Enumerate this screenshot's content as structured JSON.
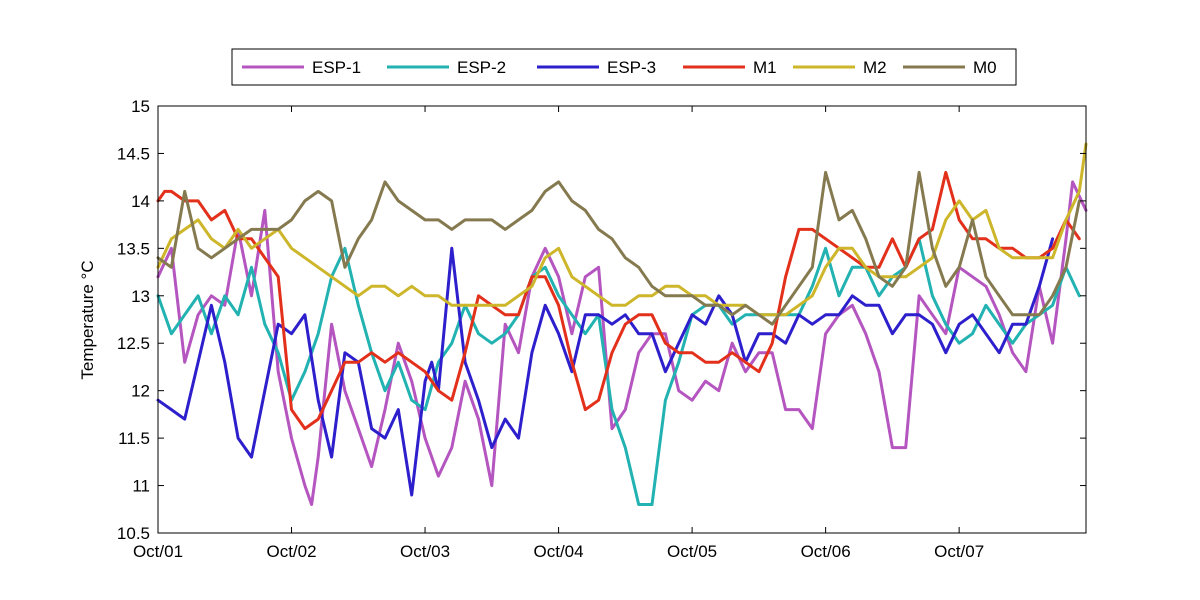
{
  "chart_data": {
    "type": "line",
    "title": "",
    "xlabel": "",
    "ylabel": "Temperature °C",
    "ylim": [
      10.5,
      15
    ],
    "xlim": [
      0,
      6.95
    ],
    "grid": false,
    "legend_position": "top",
    "legend_orientation": "horizontal",
    "x_ticks": [
      {
        "value": 0,
        "label": "Oct/01"
      },
      {
        "value": 1,
        "label": "Oct/02"
      },
      {
        "value": 2,
        "label": "Oct/03"
      },
      {
        "value": 3,
        "label": "Oct/04"
      },
      {
        "value": 4,
        "label": "Oct/05"
      },
      {
        "value": 5,
        "label": "Oct/06"
      },
      {
        "value": 6,
        "label": "Oct/07"
      }
    ],
    "y_ticks": [
      10.5,
      11,
      11.5,
      12,
      12.5,
      13,
      13.5,
      14,
      14.5,
      15
    ],
    "series": [
      {
        "name": "ESP-1",
        "color": "#b455c0",
        "x": [
          0,
          0.1,
          0.2,
          0.3,
          0.4,
          0.5,
          0.6,
          0.7,
          0.8,
          0.9,
          1.0,
          1.1,
          1.15,
          1.2,
          1.3,
          1.4,
          1.5,
          1.6,
          1.7,
          1.8,
          1.9,
          2.0,
          2.1,
          2.2,
          2.3,
          2.4,
          2.5,
          2.6,
          2.7,
          2.8,
          2.9,
          3.0,
          3.1,
          3.2,
          3.3,
          3.4,
          3.5,
          3.6,
          3.7,
          3.8,
          3.9,
          4.0,
          4.1,
          4.2,
          4.3,
          4.4,
          4.5,
          4.6,
          4.7,
          4.8,
          4.9,
          5.0,
          5.1,
          5.2,
          5.3,
          5.4,
          5.5,
          5.6,
          5.7,
          5.8,
          5.9,
          6.0,
          6.1,
          6.2,
          6.3,
          6.4,
          6.5,
          6.6,
          6.7,
          6.8,
          6.85,
          6.95
        ],
        "values": [
          13.2,
          13.5,
          12.3,
          12.8,
          13.0,
          12.9,
          13.7,
          13.0,
          13.9,
          12.2,
          11.5,
          11.0,
          10.8,
          11.3,
          12.7,
          12.0,
          11.6,
          11.2,
          11.8,
          12.5,
          12.1,
          11.5,
          11.1,
          11.4,
          12.1,
          11.7,
          11.0,
          12.7,
          12.4,
          13.2,
          13.5,
          13.2,
          12.6,
          13.2,
          13.3,
          11.6,
          11.8,
          12.4,
          12.6,
          12.6,
          12.0,
          11.9,
          12.1,
          12.0,
          12.5,
          12.2,
          12.4,
          12.4,
          11.8,
          11.8,
          11.6,
          12.6,
          12.8,
          12.9,
          12.6,
          12.2,
          11.4,
          11.4,
          13.0,
          12.8,
          12.6,
          13.3,
          13.2,
          13.1,
          12.8,
          12.4,
          12.2,
          13.1,
          12.5,
          13.6,
          14.2,
          13.9
        ]
      },
      {
        "name": "ESP-2",
        "color": "#22b2b2",
        "x": [
          0,
          0.1,
          0.2,
          0.3,
          0.4,
          0.5,
          0.6,
          0.7,
          0.8,
          0.9,
          1.0,
          1.1,
          1.2,
          1.3,
          1.4,
          1.5,
          1.6,
          1.7,
          1.8,
          1.9,
          2.0,
          2.1,
          2.2,
          2.3,
          2.4,
          2.5,
          2.6,
          2.7,
          2.8,
          2.9,
          3.0,
          3.1,
          3.2,
          3.3,
          3.4,
          3.5,
          3.6,
          3.7,
          3.8,
          3.9,
          4.0,
          4.1,
          4.2,
          4.3,
          4.4,
          4.5,
          4.6,
          4.7,
          4.8,
          4.9,
          5.0,
          5.1,
          5.2,
          5.3,
          5.4,
          5.5,
          5.6,
          5.7,
          5.8,
          5.9,
          6.0,
          6.1,
          6.2,
          6.3,
          6.4,
          6.5,
          6.6,
          6.7,
          6.8,
          6.9
        ],
        "values": [
          13.0,
          12.6,
          12.8,
          13.0,
          12.6,
          13.0,
          12.8,
          13.3,
          12.7,
          12.4,
          11.9,
          12.2,
          12.6,
          13.2,
          13.5,
          12.9,
          12.4,
          12.0,
          12.3,
          11.9,
          11.8,
          12.3,
          12.5,
          12.9,
          12.6,
          12.5,
          12.6,
          12.8,
          13.2,
          13.3,
          13.0,
          12.8,
          12.6,
          12.8,
          11.8,
          11.4,
          10.8,
          10.8,
          11.9,
          12.3,
          12.8,
          12.9,
          12.9,
          12.7,
          12.8,
          12.8,
          12.8,
          12.8,
          12.8,
          13.1,
          13.5,
          13.0,
          13.3,
          13.3,
          13.0,
          13.2,
          13.3,
          13.6,
          13.0,
          12.7,
          12.5,
          12.6,
          12.9,
          12.7,
          12.5,
          12.7,
          12.8,
          12.9,
          13.3,
          13.0
        ]
      },
      {
        "name": "ESP-3",
        "color": "#2d1fcc",
        "x": [
          0,
          0.1,
          0.2,
          0.3,
          0.4,
          0.5,
          0.6,
          0.7,
          0.8,
          0.9,
          1.0,
          1.1,
          1.2,
          1.3,
          1.4,
          1.5,
          1.6,
          1.7,
          1.8,
          1.9,
          2.0,
          2.05,
          2.1,
          2.2,
          2.3,
          2.4,
          2.5,
          2.6,
          2.7,
          2.8,
          2.9,
          3.0,
          3.1,
          3.2,
          3.3,
          3.4,
          3.5,
          3.6,
          3.7,
          3.8,
          3.9,
          4.0,
          4.1,
          4.2,
          4.3,
          4.4,
          4.5,
          4.6,
          4.7,
          4.8,
          4.9,
          5.0,
          5.1,
          5.2,
          5.3,
          5.4,
          5.5,
          5.6,
          5.7,
          5.8,
          5.9,
          6.0,
          6.1,
          6.2,
          6.3,
          6.4,
          6.5,
          6.6,
          6.7
        ],
        "values": [
          11.9,
          11.8,
          11.7,
          12.3,
          12.9,
          12.3,
          11.5,
          11.3,
          12.0,
          12.7,
          12.6,
          12.8,
          11.9,
          11.3,
          12.4,
          12.3,
          11.6,
          11.5,
          11.8,
          10.9,
          12.1,
          12.3,
          12.0,
          13.5,
          12.3,
          11.9,
          11.4,
          11.7,
          11.5,
          12.4,
          12.9,
          12.6,
          12.2,
          12.8,
          12.8,
          12.7,
          12.8,
          12.6,
          12.6,
          12.2,
          12.5,
          12.8,
          12.7,
          13.0,
          12.8,
          12.3,
          12.6,
          12.6,
          12.5,
          12.8,
          12.7,
          12.8,
          12.8,
          13.0,
          12.9,
          12.9,
          12.6,
          12.8,
          12.8,
          12.7,
          12.4,
          12.7,
          12.8,
          12.6,
          12.4,
          12.7,
          12.7,
          13.1,
          13.6
        ]
      },
      {
        "name": "M1",
        "color": "#e2301b",
        "x": [
          0,
          0.05,
          0.1,
          0.2,
          0.3,
          0.4,
          0.5,
          0.6,
          0.7,
          0.8,
          0.9,
          1.0,
          1.1,
          1.2,
          1.3,
          1.4,
          1.5,
          1.6,
          1.7,
          1.8,
          1.9,
          2.0,
          2.1,
          2.2,
          2.3,
          2.4,
          2.5,
          2.6,
          2.7,
          2.8,
          2.9,
          3.0,
          3.1,
          3.2,
          3.3,
          3.4,
          3.5,
          3.6,
          3.7,
          3.8,
          3.9,
          4.0,
          4.1,
          4.2,
          4.3,
          4.4,
          4.5,
          4.6,
          4.7,
          4.8,
          4.9,
          5.0,
          5.1,
          5.2,
          5.3,
          5.4,
          5.5,
          5.6,
          5.7,
          5.8,
          5.9,
          6.0,
          6.1,
          6.2,
          6.3,
          6.4,
          6.5,
          6.6,
          6.7,
          6.8,
          6.9
        ],
        "values": [
          14.0,
          14.1,
          14.1,
          14.0,
          14.0,
          13.8,
          13.9,
          13.6,
          13.6,
          13.4,
          13.2,
          11.8,
          11.6,
          11.7,
          12.0,
          12.3,
          12.3,
          12.4,
          12.3,
          12.4,
          12.3,
          12.2,
          12.0,
          11.9,
          12.4,
          13.0,
          12.9,
          12.8,
          12.8,
          13.2,
          13.2,
          12.9,
          12.3,
          11.8,
          11.9,
          12.4,
          12.7,
          12.8,
          12.8,
          12.5,
          12.4,
          12.4,
          12.3,
          12.3,
          12.4,
          12.3,
          12.2,
          12.5,
          13.2,
          13.7,
          13.7,
          13.6,
          13.5,
          13.4,
          13.3,
          13.3,
          13.6,
          13.3,
          13.6,
          13.7,
          14.3,
          13.8,
          13.6,
          13.6,
          13.5,
          13.5,
          13.4,
          13.4,
          13.5,
          13.8,
          13.6
        ]
      },
      {
        "name": "M2",
        "color": "#cdb62a",
        "x": [
          0,
          0.1,
          0.2,
          0.3,
          0.4,
          0.5,
          0.6,
          0.7,
          0.8,
          0.9,
          1.0,
          1.1,
          1.2,
          1.3,
          1.4,
          1.5,
          1.6,
          1.7,
          1.8,
          1.9,
          2.0,
          2.1,
          2.2,
          2.3,
          2.4,
          2.5,
          2.6,
          2.7,
          2.8,
          2.9,
          3.0,
          3.1,
          3.2,
          3.3,
          3.4,
          3.5,
          3.6,
          3.7,
          3.8,
          3.9,
          4.0,
          4.1,
          4.2,
          4.3,
          4.4,
          4.5,
          4.6,
          4.7,
          4.8,
          4.9,
          5.0,
          5.1,
          5.2,
          5.3,
          5.4,
          5.5,
          5.6,
          5.7,
          5.8,
          5.9,
          6.0,
          6.1,
          6.2,
          6.3,
          6.4,
          6.5,
          6.6,
          6.7,
          6.8,
          6.9,
          6.95
        ],
        "values": [
          13.3,
          13.6,
          13.7,
          13.8,
          13.6,
          13.5,
          13.7,
          13.5,
          13.6,
          13.7,
          13.5,
          13.4,
          13.3,
          13.2,
          13.1,
          13.0,
          13.1,
          13.1,
          13.0,
          13.1,
          13.0,
          13.0,
          12.9,
          12.9,
          12.9,
          12.9,
          12.9,
          13.0,
          13.1,
          13.4,
          13.5,
          13.2,
          13.1,
          13.0,
          12.9,
          12.9,
          13.0,
          13.0,
          13.1,
          13.1,
          13.0,
          13.0,
          12.9,
          12.9,
          12.9,
          12.8,
          12.8,
          12.8,
          12.9,
          13.0,
          13.3,
          13.5,
          13.5,
          13.3,
          13.2,
          13.2,
          13.2,
          13.3,
          13.4,
          13.8,
          14.0,
          13.8,
          13.9,
          13.5,
          13.4,
          13.4,
          13.4,
          13.4,
          13.8,
          14.1,
          14.6
        ]
      },
      {
        "name": "M0",
        "color": "#857a4f",
        "x": [
          0,
          0.1,
          0.2,
          0.3,
          0.4,
          0.5,
          0.6,
          0.7,
          0.8,
          0.9,
          1.0,
          1.1,
          1.2,
          1.3,
          1.4,
          1.5,
          1.6,
          1.7,
          1.8,
          1.9,
          2.0,
          2.1,
          2.2,
          2.3,
          2.4,
          2.5,
          2.6,
          2.7,
          2.8,
          2.9,
          3.0,
          3.1,
          3.2,
          3.3,
          3.4,
          3.5,
          3.6,
          3.7,
          3.8,
          3.9,
          4.0,
          4.1,
          4.2,
          4.3,
          4.4,
          4.5,
          4.6,
          4.7,
          4.8,
          4.9,
          5.0,
          5.1,
          5.2,
          5.3,
          5.4,
          5.5,
          5.6,
          5.7,
          5.8,
          5.9,
          6.0,
          6.1,
          6.2,
          6.3,
          6.4,
          6.5,
          6.6,
          6.7,
          6.8,
          6.9
        ],
        "values": [
          13.4,
          13.3,
          14.1,
          13.5,
          13.4,
          13.5,
          13.6,
          13.7,
          13.7,
          13.7,
          13.8,
          14.0,
          14.1,
          14.0,
          13.3,
          13.6,
          13.8,
          14.2,
          14.0,
          13.9,
          13.8,
          13.8,
          13.7,
          13.8,
          13.8,
          13.8,
          13.7,
          13.8,
          13.9,
          14.1,
          14.2,
          14.0,
          13.9,
          13.7,
          13.6,
          13.4,
          13.3,
          13.1,
          13.0,
          13.0,
          13.0,
          12.9,
          12.9,
          12.8,
          12.9,
          12.8,
          12.7,
          12.9,
          13.1,
          13.3,
          14.3,
          13.8,
          13.9,
          13.6,
          13.2,
          13.1,
          13.3,
          14.3,
          13.5,
          13.1,
          13.3,
          13.8,
          13.2,
          13.0,
          12.8,
          12.8,
          12.8,
          13.0,
          13.3,
          14.0
        ]
      }
    ]
  }
}
